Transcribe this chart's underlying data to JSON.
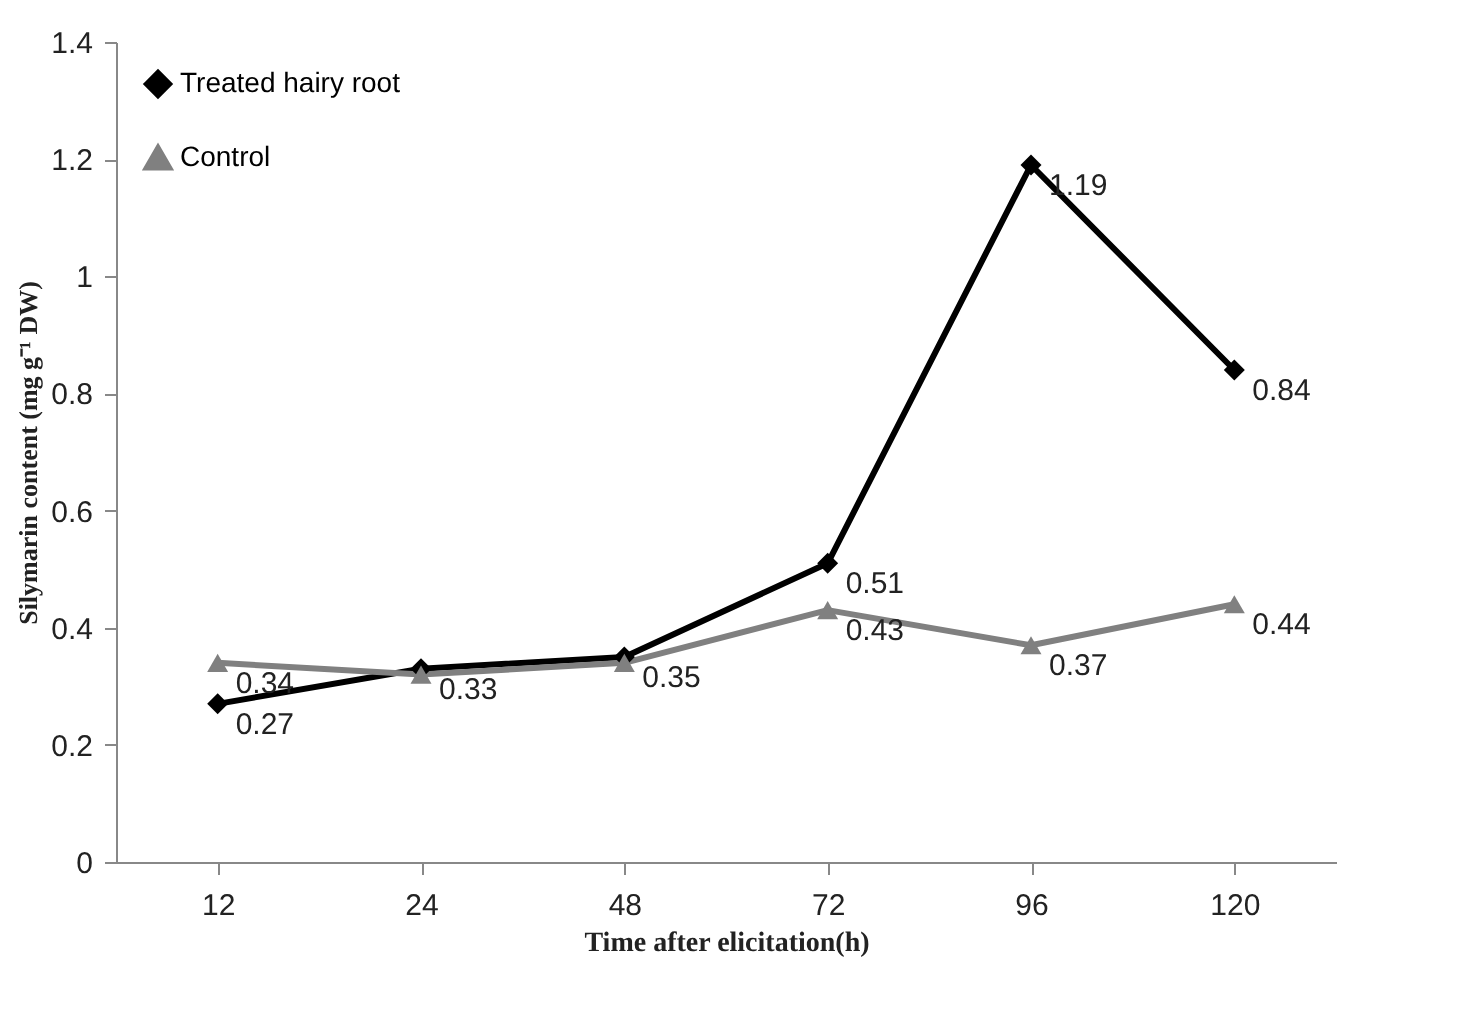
{
  "chart_data": {
    "type": "line",
    "xlabel": "Time after elicitation(h)",
    "ylabel": "Silymarin content (mg g⁻¹ DW)",
    "categories": [
      "12",
      "24",
      "48",
      "72",
      "96",
      "120"
    ],
    "series": [
      {
        "name": "Treated hairy root",
        "color": "#000000",
        "marker": "diamond",
        "values": [
          0.27,
          0.33,
          0.35,
          0.51,
          1.19,
          0.84
        ],
        "value_labels": [
          "0.27",
          "0.33",
          "0.35",
          "0.51",
          "1.19",
          "0.84"
        ]
      },
      {
        "name": "Control",
        "color": "#808080",
        "marker": "triangle",
        "values": [
          0.34,
          0.32,
          0.34,
          0.43,
          0.37,
          0.44
        ],
        "value_labels": [
          "0.34",
          null,
          null,
          "0.43",
          "0.37",
          "0.44"
        ]
      }
    ],
    "ylim": [
      0,
      1.4
    ],
    "yticks": [
      0,
      0.2,
      0.4,
      0.6,
      0.8,
      1,
      1.2,
      1.4
    ],
    "grid": false,
    "legend": "top left",
    "line_style": "solid"
  }
}
